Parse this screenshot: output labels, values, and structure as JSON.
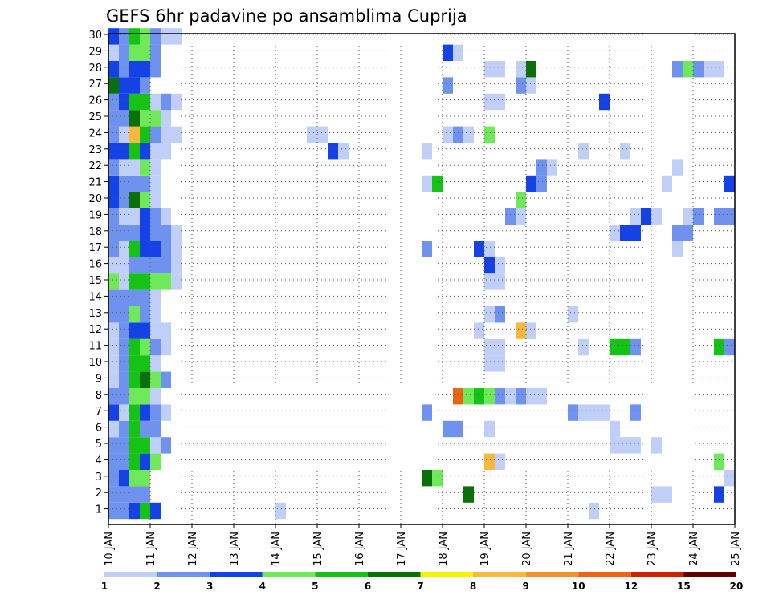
{
  "chart_data": {
    "type": "heatmap",
    "title": "GEFS 6hr padavine po ansamblima Cuprija",
    "xlabel": "",
    "ylabel": "",
    "x_ticks": [
      "10 JAN",
      "11 JAN",
      "12 JAN",
      "13 JAN",
      "14 JAN",
      "15 JAN",
      "16 JAN",
      "17 JAN",
      "18 JAN",
      "19 JAN",
      "20 JAN",
      "21 JAN",
      "22 JAN",
      "23 JAN",
      "24 JAN",
      "25 JAN"
    ],
    "y_ticks": [
      "1",
      "2",
      "3",
      "4",
      "5",
      "6",
      "7",
      "8",
      "9",
      "10",
      "11",
      "12",
      "13",
      "14",
      "15",
      "16",
      "17",
      "18",
      "19",
      "20",
      "21",
      "22",
      "23",
      "24",
      "25",
      "26",
      "27",
      "28",
      "29",
      "30"
    ],
    "grid": true,
    "legend": {
      "position": "bottom",
      "levels": [
        "1",
        "2",
        "3",
        "4",
        "5",
        "6",
        "7",
        "8",
        "9",
        "10",
        "12",
        "15",
        "20"
      ],
      "colors": [
        "#bfcff7",
        "#6f92ee",
        "#1542e6",
        "#6fe85a",
        "#14c314",
        "#0a710a",
        "#f4f400",
        "#f7b93d",
        "#f28f2f",
        "#eb6414",
        "#cc2200",
        "#9a0000",
        "#5e0000"
      ]
    },
    "cells": [
      {
        "m": 1,
        "s": 0,
        "v": 2
      },
      {
        "m": 1,
        "s": 1,
        "v": 2
      },
      {
        "m": 1,
        "s": 2,
        "v": 3
      },
      {
        "m": 1,
        "s": 3,
        "v": 5
      },
      {
        "m": 1,
        "s": 4,
        "v": 3
      },
      {
        "m": 1,
        "s": 16,
        "v": 1
      },
      {
        "m": 1,
        "s": 46,
        "v": 1
      },
      {
        "m": 2,
        "s": 0,
        "v": 2
      },
      {
        "m": 2,
        "s": 1,
        "v": 2
      },
      {
        "m": 2,
        "s": 2,
        "v": 2
      },
      {
        "m": 2,
        "s": 3,
        "v": 2
      },
      {
        "m": 2,
        "s": 34,
        "v": 6
      },
      {
        "m": 2,
        "s": 52,
        "v": 1
      },
      {
        "m": 2,
        "s": 53,
        "v": 1
      },
      {
        "m": 2,
        "s": 58,
        "v": 3
      },
      {
        "m": 3,
        "s": 0,
        "v": 2
      },
      {
        "m": 3,
        "s": 1,
        "v": 3
      },
      {
        "m": 3,
        "s": 2,
        "v": 4
      },
      {
        "m": 3,
        "s": 3,
        "v": 4
      },
      {
        "m": 3,
        "s": 30,
        "v": 6
      },
      {
        "m": 3,
        "s": 31,
        "v": 4
      },
      {
        "m": 3,
        "s": 59,
        "v": 1
      },
      {
        "m": 4,
        "s": 0,
        "v": 2
      },
      {
        "m": 4,
        "s": 1,
        "v": 2
      },
      {
        "m": 4,
        "s": 2,
        "v": 5
      },
      {
        "m": 4,
        "s": 3,
        "v": 3
      },
      {
        "m": 4,
        "s": 4,
        "v": 4
      },
      {
        "m": 4,
        "s": 36,
        "v": 8
      },
      {
        "m": 4,
        "s": 37,
        "v": 1
      },
      {
        "m": 4,
        "s": 58,
        "v": 4
      },
      {
        "m": 5,
        "s": 0,
        "v": 2
      },
      {
        "m": 5,
        "s": 1,
        "v": 2
      },
      {
        "m": 5,
        "s": 2,
        "v": 5
      },
      {
        "m": 5,
        "s": 3,
        "v": 5
      },
      {
        "m": 5,
        "s": 4,
        "v": 1
      },
      {
        "m": 5,
        "s": 5,
        "v": 2
      },
      {
        "m": 5,
        "s": 48,
        "v": 1
      },
      {
        "m": 5,
        "s": 49,
        "v": 1
      },
      {
        "m": 5,
        "s": 50,
        "v": 1
      },
      {
        "m": 5,
        "s": 52,
        "v": 1
      },
      {
        "m": 6,
        "s": 0,
        "v": 1
      },
      {
        "m": 6,
        "s": 1,
        "v": 2
      },
      {
        "m": 6,
        "s": 2,
        "v": 5
      },
      {
        "m": 6,
        "s": 3,
        "v": 2
      },
      {
        "m": 6,
        "s": 4,
        "v": 2
      },
      {
        "m": 6,
        "s": 32,
        "v": 2
      },
      {
        "m": 6,
        "s": 33,
        "v": 2
      },
      {
        "m": 6,
        "s": 36,
        "v": 1
      },
      {
        "m": 6,
        "s": 48,
        "v": 1
      },
      {
        "m": 6,
        "s": 60,
        "v": 1
      },
      {
        "m": 7,
        "s": 0,
        "v": 3
      },
      {
        "m": 7,
        "s": 1,
        "v": 1
      },
      {
        "m": 7,
        "s": 2,
        "v": 5
      },
      {
        "m": 7,
        "s": 3,
        "v": 3
      },
      {
        "m": 7,
        "s": 4,
        "v": 2
      },
      {
        "m": 7,
        "s": 5,
        "v": 1
      },
      {
        "m": 7,
        "s": 30,
        "v": 2
      },
      {
        "m": 7,
        "s": 44,
        "v": 2
      },
      {
        "m": 7,
        "s": 45,
        "v": 1
      },
      {
        "m": 7,
        "s": 46,
        "v": 1
      },
      {
        "m": 7,
        "s": 47,
        "v": 1
      },
      {
        "m": 7,
        "s": 50,
        "v": 2
      },
      {
        "m": 8,
        "s": 0,
        "v": 2
      },
      {
        "m": 8,
        "s": 1,
        "v": 2
      },
      {
        "m": 8,
        "s": 2,
        "v": 4
      },
      {
        "m": 8,
        "s": 3,
        "v": 4
      },
      {
        "m": 8,
        "s": 4,
        "v": 1
      },
      {
        "m": 8,
        "s": 33,
        "v": 10
      },
      {
        "m": 8,
        "s": 34,
        "v": 4
      },
      {
        "m": 8,
        "s": 35,
        "v": 5
      },
      {
        "m": 8,
        "s": 36,
        "v": 4
      },
      {
        "m": 8,
        "s": 37,
        "v": 2
      },
      {
        "m": 8,
        "s": 38,
        "v": 1
      },
      {
        "m": 8,
        "s": 39,
        "v": 2
      },
      {
        "m": 8,
        "s": 40,
        "v": 1
      },
      {
        "m": 8,
        "s": 41,
        "v": 1
      },
      {
        "m": 9,
        "s": 0,
        "v": 1
      },
      {
        "m": 9,
        "s": 1,
        "v": 2
      },
      {
        "m": 9,
        "s": 2,
        "v": 5
      },
      {
        "m": 9,
        "s": 3,
        "v": 6
      },
      {
        "m": 9,
        "s": 4,
        "v": 4
      },
      {
        "m": 9,
        "s": 5,
        "v": 2
      },
      {
        "m": 10,
        "s": 0,
        "v": 1
      },
      {
        "m": 10,
        "s": 1,
        "v": 2
      },
      {
        "m": 10,
        "s": 2,
        "v": 5
      },
      {
        "m": 10,
        "s": 3,
        "v": 5
      },
      {
        "m": 10,
        "s": 4,
        "v": 1
      },
      {
        "m": 10,
        "s": 36,
        "v": 1
      },
      {
        "m": 10,
        "s": 37,
        "v": 1
      },
      {
        "m": 11,
        "s": 0,
        "v": 1
      },
      {
        "m": 11,
        "s": 1,
        "v": 2
      },
      {
        "m": 11,
        "s": 2,
        "v": 5
      },
      {
        "m": 11,
        "s": 3,
        "v": 4
      },
      {
        "m": 11,
        "s": 4,
        "v": 2
      },
      {
        "m": 11,
        "s": 5,
        "v": 1
      },
      {
        "m": 11,
        "s": 36,
        "v": 1
      },
      {
        "m": 11,
        "s": 37,
        "v": 1
      },
      {
        "m": 11,
        "s": 45,
        "v": 1
      },
      {
        "m": 11,
        "s": 48,
        "v": 5
      },
      {
        "m": 11,
        "s": 49,
        "v": 5
      },
      {
        "m": 11,
        "s": 50,
        "v": 2
      },
      {
        "m": 11,
        "s": 58,
        "v": 5
      },
      {
        "m": 11,
        "s": 59,
        "v": 2
      },
      {
        "m": 12,
        "s": 0,
        "v": 1
      },
      {
        "m": 12,
        "s": 1,
        "v": 2
      },
      {
        "m": 12,
        "s": 2,
        "v": 3
      },
      {
        "m": 12,
        "s": 3,
        "v": 3
      },
      {
        "m": 12,
        "s": 4,
        "v": 1
      },
      {
        "m": 12,
        "s": 5,
        "v": 1
      },
      {
        "m": 12,
        "s": 35,
        "v": 1
      },
      {
        "m": 12,
        "s": 39,
        "v": 8
      },
      {
        "m": 12,
        "s": 40,
        "v": 1
      },
      {
        "m": 13,
        "s": 0,
        "v": 2
      },
      {
        "m": 13,
        "s": 1,
        "v": 2
      },
      {
        "m": 13,
        "s": 2,
        "v": 4
      },
      {
        "m": 13,
        "s": 3,
        "v": 2
      },
      {
        "m": 13,
        "s": 4,
        "v": 1
      },
      {
        "m": 13,
        "s": 36,
        "v": 1
      },
      {
        "m": 13,
        "s": 37,
        "v": 2
      },
      {
        "m": 13,
        "s": 44,
        "v": 1
      },
      {
        "m": 14,
        "s": 0,
        "v": 2
      },
      {
        "m": 14,
        "s": 1,
        "v": 2
      },
      {
        "m": 14,
        "s": 2,
        "v": 2
      },
      {
        "m": 14,
        "s": 3,
        "v": 2
      },
      {
        "m": 14,
        "s": 4,
        "v": 1
      },
      {
        "m": 15,
        "s": 0,
        "v": 4
      },
      {
        "m": 15,
        "s": 1,
        "v": 1
      },
      {
        "m": 15,
        "s": 2,
        "v": 5
      },
      {
        "m": 15,
        "s": 3,
        "v": 5
      },
      {
        "m": 15,
        "s": 4,
        "v": 4
      },
      {
        "m": 15,
        "s": 5,
        "v": 4
      },
      {
        "m": 15,
        "s": 6,
        "v": 1
      },
      {
        "m": 15,
        "s": 36,
        "v": 1
      },
      {
        "m": 15,
        "s": 37,
        "v": 1
      },
      {
        "m": 16,
        "s": 0,
        "v": 1
      },
      {
        "m": 16,
        "s": 1,
        "v": 1
      },
      {
        "m": 16,
        "s": 2,
        "v": 2
      },
      {
        "m": 16,
        "s": 3,
        "v": 2
      },
      {
        "m": 16,
        "s": 4,
        "v": 2
      },
      {
        "m": 16,
        "s": 5,
        "v": 2
      },
      {
        "m": 16,
        "s": 6,
        "v": 1
      },
      {
        "m": 16,
        "s": 36,
        "v": 3
      },
      {
        "m": 16,
        "s": 37,
        "v": 1
      },
      {
        "m": 17,
        "s": 0,
        "v": 2
      },
      {
        "m": 17,
        "s": 1,
        "v": 1
      },
      {
        "m": 17,
        "s": 2,
        "v": 5
      },
      {
        "m": 17,
        "s": 3,
        "v": 3
      },
      {
        "m": 17,
        "s": 4,
        "v": 3
      },
      {
        "m": 17,
        "s": 5,
        "v": 2
      },
      {
        "m": 17,
        "s": 6,
        "v": 1
      },
      {
        "m": 17,
        "s": 30,
        "v": 2
      },
      {
        "m": 17,
        "s": 35,
        "v": 3
      },
      {
        "m": 17,
        "s": 36,
        "v": 1
      },
      {
        "m": 17,
        "s": 54,
        "v": 1
      },
      {
        "m": 18,
        "s": 0,
        "v": 2
      },
      {
        "m": 18,
        "s": 1,
        "v": 2
      },
      {
        "m": 18,
        "s": 2,
        "v": 2
      },
      {
        "m": 18,
        "s": 3,
        "v": 3
      },
      {
        "m": 18,
        "s": 4,
        "v": 2
      },
      {
        "m": 18,
        "s": 5,
        "v": 2
      },
      {
        "m": 18,
        "s": 6,
        "v": 1
      },
      {
        "m": 18,
        "s": 48,
        "v": 1
      },
      {
        "m": 18,
        "s": 49,
        "v": 3
      },
      {
        "m": 18,
        "s": 50,
        "v": 3
      },
      {
        "m": 18,
        "s": 54,
        "v": 2
      },
      {
        "m": 18,
        "s": 55,
        "v": 2
      },
      {
        "m": 19,
        "s": 0,
        "v": 2
      },
      {
        "m": 19,
        "s": 1,
        "v": 1
      },
      {
        "m": 19,
        "s": 2,
        "v": 1
      },
      {
        "m": 19,
        "s": 3,
        "v": 3
      },
      {
        "m": 19,
        "s": 4,
        "v": 2
      },
      {
        "m": 19,
        "s": 5,
        "v": 1
      },
      {
        "m": 19,
        "s": 38,
        "v": 2
      },
      {
        "m": 19,
        "s": 39,
        "v": 1
      },
      {
        "m": 19,
        "s": 50,
        "v": 1
      },
      {
        "m": 19,
        "s": 51,
        "v": 3
      },
      {
        "m": 19,
        "s": 52,
        "v": 1
      },
      {
        "m": 19,
        "s": 55,
        "v": 1
      },
      {
        "m": 19,
        "s": 56,
        "v": 2
      },
      {
        "m": 19,
        "s": 58,
        "v": 2
      },
      {
        "m": 19,
        "s": 59,
        "v": 2
      },
      {
        "m": 20,
        "s": 0,
        "v": 3
      },
      {
        "m": 20,
        "s": 1,
        "v": 2
      },
      {
        "m": 20,
        "s": 2,
        "v": 6
      },
      {
        "m": 20,
        "s": 3,
        "v": 4
      },
      {
        "m": 20,
        "s": 4,
        "v": 1
      },
      {
        "m": 20,
        "s": 39,
        "v": 4
      },
      {
        "m": 21,
        "s": 0,
        "v": 3
      },
      {
        "m": 21,
        "s": 1,
        "v": 2
      },
      {
        "m": 21,
        "s": 2,
        "v": 2
      },
      {
        "m": 21,
        "s": 3,
        "v": 2
      },
      {
        "m": 21,
        "s": 4,
        "v": 1
      },
      {
        "m": 21,
        "s": 30,
        "v": 1
      },
      {
        "m": 21,
        "s": 31,
        "v": 5
      },
      {
        "m": 21,
        "s": 40,
        "v": 3
      },
      {
        "m": 21,
        "s": 41,
        "v": 2
      },
      {
        "m": 21,
        "s": 53,
        "v": 1
      },
      {
        "m": 21,
        "s": 59,
        "v": 3
      },
      {
        "m": 21,
        "s": 60,
        "v": 1
      },
      {
        "m": 22,
        "s": 0,
        "v": 2
      },
      {
        "m": 22,
        "s": 1,
        "v": 1
      },
      {
        "m": 22,
        "s": 2,
        "v": 1
      },
      {
        "m": 22,
        "s": 3,
        "v": 4
      },
      {
        "m": 22,
        "s": 4,
        "v": 1
      },
      {
        "m": 22,
        "s": 41,
        "v": 2
      },
      {
        "m": 22,
        "s": 42,
        "v": 1
      },
      {
        "m": 22,
        "s": 54,
        "v": 1
      },
      {
        "m": 23,
        "s": 0,
        "v": 3
      },
      {
        "m": 23,
        "s": 1,
        "v": 3
      },
      {
        "m": 23,
        "s": 2,
        "v": 5
      },
      {
        "m": 23,
        "s": 3,
        "v": 3
      },
      {
        "m": 23,
        "s": 4,
        "v": 1
      },
      {
        "m": 23,
        "s": 5,
        "v": 1
      },
      {
        "m": 23,
        "s": 21,
        "v": 3
      },
      {
        "m": 23,
        "s": 22,
        "v": 1
      },
      {
        "m": 23,
        "s": 30,
        "v": 1
      },
      {
        "m": 23,
        "s": 45,
        "v": 1
      },
      {
        "m": 23,
        "s": 49,
        "v": 1
      },
      {
        "m": 24,
        "s": 0,
        "v": 2
      },
      {
        "m": 24,
        "s": 1,
        "v": 1
      },
      {
        "m": 24,
        "s": 2,
        "v": 8
      },
      {
        "m": 24,
        "s": 3,
        "v": 5
      },
      {
        "m": 24,
        "s": 4,
        "v": 2
      },
      {
        "m": 24,
        "s": 5,
        "v": 1
      },
      {
        "m": 24,
        "s": 6,
        "v": 1
      },
      {
        "m": 24,
        "s": 19,
        "v": 1
      },
      {
        "m": 24,
        "s": 20,
        "v": 1
      },
      {
        "m": 24,
        "s": 32,
        "v": 1
      },
      {
        "m": 24,
        "s": 33,
        "v": 2
      },
      {
        "m": 24,
        "s": 34,
        "v": 1
      },
      {
        "m": 24,
        "s": 36,
        "v": 4
      },
      {
        "m": 25,
        "s": 0,
        "v": 2
      },
      {
        "m": 25,
        "s": 1,
        "v": 2
      },
      {
        "m": 25,
        "s": 2,
        "v": 6
      },
      {
        "m": 25,
        "s": 3,
        "v": 4
      },
      {
        "m": 25,
        "s": 4,
        "v": 4
      },
      {
        "m": 25,
        "s": 5,
        "v": 1
      },
      {
        "m": 26,
        "s": 0,
        "v": 2
      },
      {
        "m": 26,
        "s": 1,
        "v": 3
      },
      {
        "m": 26,
        "s": 2,
        "v": 5
      },
      {
        "m": 26,
        "s": 3,
        "v": 5
      },
      {
        "m": 26,
        "s": 4,
        "v": 1
      },
      {
        "m": 26,
        "s": 5,
        "v": 2
      },
      {
        "m": 26,
        "s": 6,
        "v": 1
      },
      {
        "m": 26,
        "s": 36,
        "v": 1
      },
      {
        "m": 26,
        "s": 37,
        "v": 1
      },
      {
        "m": 26,
        "s": 47,
        "v": 3
      },
      {
        "m": 27,
        "s": 0,
        "v": 6
      },
      {
        "m": 27,
        "s": 1,
        "v": 3
      },
      {
        "m": 27,
        "s": 2,
        "v": 3
      },
      {
        "m": 27,
        "s": 3,
        "v": 2
      },
      {
        "m": 27,
        "s": 32,
        "v": 2
      },
      {
        "m": 27,
        "s": 39,
        "v": 2
      },
      {
        "m": 27,
        "s": 40,
        "v": 1
      },
      {
        "m": 28,
        "s": 0,
        "v": 3
      },
      {
        "m": 28,
        "s": 1,
        "v": 2
      },
      {
        "m": 28,
        "s": 2,
        "v": 3
      },
      {
        "m": 28,
        "s": 3,
        "v": 3
      },
      {
        "m": 28,
        "s": 4,
        "v": 2
      },
      {
        "m": 28,
        "s": 36,
        "v": 1
      },
      {
        "m": 28,
        "s": 37,
        "v": 1
      },
      {
        "m": 28,
        "s": 39,
        "v": 1
      },
      {
        "m": 28,
        "s": 40,
        "v": 6
      },
      {
        "m": 28,
        "s": 54,
        "v": 2
      },
      {
        "m": 28,
        "s": 55,
        "v": 4
      },
      {
        "m": 28,
        "s": 56,
        "v": 2
      },
      {
        "m": 28,
        "s": 57,
        "v": 1
      },
      {
        "m": 28,
        "s": 58,
        "v": 1
      },
      {
        "m": 29,
        "s": 0,
        "v": 1
      },
      {
        "m": 29,
        "s": 1,
        "v": 2
      },
      {
        "m": 29,
        "s": 2,
        "v": 4
      },
      {
        "m": 29,
        "s": 3,
        "v": 4
      },
      {
        "m": 29,
        "s": 4,
        "v": 2
      },
      {
        "m": 29,
        "s": 32,
        "v": 3
      },
      {
        "m": 29,
        "s": 33,
        "v": 1
      },
      {
        "m": 30,
        "s": 0,
        "v": 3
      },
      {
        "m": 30,
        "s": 1,
        "v": 2
      },
      {
        "m": 30,
        "s": 2,
        "v": 5
      },
      {
        "m": 30,
        "s": 3,
        "v": 4
      },
      {
        "m": 30,
        "s": 4,
        "v": 2
      },
      {
        "m": 30,
        "s": 5,
        "v": 1
      },
      {
        "m": 30,
        "s": 6,
        "v": 1
      }
    ]
  }
}
